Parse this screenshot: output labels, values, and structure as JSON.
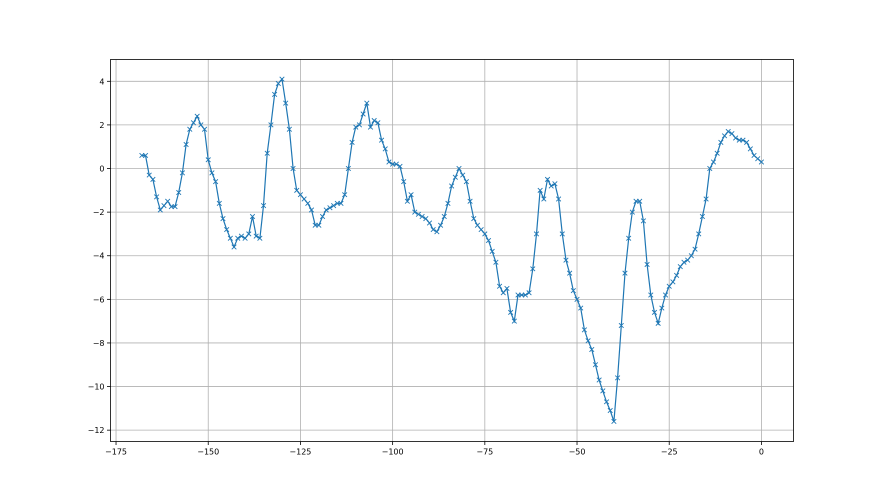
{
  "chart_data": {
    "type": "line",
    "marker": "x",
    "color": "#1f77b4",
    "grid": true,
    "xlim": [
      -176.5,
      8.7
    ],
    "ylim": [
      -12.52,
      5.0
    ],
    "xticks": [
      -175,
      -150,
      -125,
      -100,
      -75,
      -50,
      -25,
      0
    ],
    "yticks": [
      4,
      2,
      0,
      -2,
      -4,
      -6,
      -8,
      -10,
      -12
    ],
    "xtick_labels": [
      "−175",
      "−150",
      "−125",
      "−100",
      "−75",
      "−50",
      "−25",
      "0"
    ],
    "ytick_labels": [
      "4",
      "2",
      "0",
      "−2",
      "−4",
      "−6",
      "−8",
      "−10",
      "−12"
    ],
    "series": [
      {
        "x": [
          -168,
          -167,
          -166,
          -165,
          -164,
          -163,
          -162,
          -161,
          -160,
          -159,
          -158,
          -157,
          -156,
          -155,
          -154,
          -153,
          -152,
          -151,
          -150,
          -149,
          -148,
          -147,
          -146,
          -145,
          -144,
          -143,
          -142,
          -141,
          -140,
          -139,
          -138,
          -137,
          -136,
          -135,
          -134,
          -133,
          -132,
          -131,
          -130,
          -129,
          -128,
          -127,
          -126,
          -125,
          -124,
          -123,
          -122,
          -121,
          -120,
          -119,
          -118,
          -117,
          -116,
          -115,
          -114,
          -113,
          -112,
          -111,
          -110,
          -109,
          -108,
          -107,
          -106,
          -105,
          -104,
          -103,
          -102,
          -101,
          -100,
          -99,
          -98,
          -97,
          -96,
          -95,
          -94,
          -93,
          -92,
          -91,
          -90,
          -89,
          -88,
          -87,
          -86,
          -85,
          -84,
          -83,
          -82,
          -81,
          -80,
          -79,
          -78,
          -77,
          -76,
          -75,
          -74,
          -73,
          -72,
          -71,
          -70,
          -69,
          -68,
          -67,
          -66,
          -65,
          -64,
          -63,
          -62,
          -61,
          -60,
          -59,
          -58,
          -57,
          -56,
          -55,
          -54,
          -53,
          -52,
          -51,
          -50,
          -49,
          -48,
          -47,
          -46,
          -45,
          -44,
          -43,
          -42,
          -41,
          -40,
          -39,
          -38,
          -37,
          -36,
          -35,
          -34,
          -33,
          -32,
          -31,
          -30,
          -29,
          -28,
          -27,
          -26,
          -25,
          -24,
          -23,
          -22,
          -21,
          -20,
          -19,
          -18,
          -17,
          -16,
          -15,
          -14,
          -13,
          -12,
          -11,
          -10,
          -9,
          -8,
          -7,
          -6,
          -5,
          -4,
          -3,
          -2,
          -1,
          0
        ],
        "y": [
          0.6,
          0.6,
          -0.3,
          -0.5,
          -1.3,
          -1.9,
          -1.7,
          -1.5,
          -1.75,
          -1.75,
          -1.1,
          -0.2,
          1.1,
          1.8,
          2.1,
          2.4,
          2.0,
          1.8,
          0.4,
          -0.2,
          -0.6,
          -1.6,
          -2.3,
          -2.8,
          -3.2,
          -3.6,
          -3.2,
          -3.1,
          -3.2,
          -3.0,
          -2.2,
          -3.1,
          -3.2,
          -1.7,
          0.7,
          2.0,
          3.4,
          3.9,
          4.1,
          3.0,
          1.8,
          0.0,
          -1.0,
          -1.2,
          -1.4,
          -1.6,
          -1.9,
          -2.6,
          -2.6,
          -2.2,
          -1.9,
          -1.8,
          -1.7,
          -1.6,
          -1.6,
          -1.2,
          0.0,
          1.2,
          1.9,
          2.0,
          2.5,
          3.0,
          1.9,
          2.2,
          2.1,
          1.3,
          0.9,
          0.3,
          0.2,
          0.2,
          0.1,
          -0.6,
          -1.5,
          -1.2,
          -2.0,
          -2.1,
          -2.2,
          -2.3,
          -2.5,
          -2.8,
          -2.9,
          -2.6,
          -2.2,
          -1.6,
          -0.8,
          -0.4,
          0.0,
          -0.3,
          -0.6,
          -1.5,
          -2.3,
          -2.6,
          -2.8,
          -3.0,
          -3.3,
          -3.8,
          -4.3,
          -5.4,
          -5.7,
          -5.5,
          -6.6,
          -7.0,
          -5.8,
          -5.8,
          -5.8,
          -5.7,
          -4.6,
          -3.0,
          -1.0,
          -1.4,
          -0.5,
          -0.8,
          -0.7,
          -1.4,
          -3.0,
          -4.2,
          -4.8,
          -5.6,
          -6.0,
          -6.4,
          -7.4,
          -7.9,
          -8.3,
          -9.0,
          -9.7,
          -10.2,
          -10.7,
          -11.1,
          -11.6,
          -9.6,
          -7.2,
          -4.8,
          -3.2,
          -2.0,
          -1.5,
          -1.5,
          -2.4,
          -4.4,
          -5.8,
          -6.6,
          -7.1,
          -6.4,
          -5.8,
          -5.4,
          -5.2,
          -4.9,
          -4.5,
          -4.3,
          -4.2,
          -4.0,
          -3.7,
          -3.0,
          -2.2,
          -1.4,
          0.0,
          0.3,
          0.7,
          1.2,
          1.5,
          1.7,
          1.6,
          1.4,
          1.3,
          1.3,
          1.2,
          0.9,
          0.6,
          0.45,
          0.3
        ]
      }
    ]
  }
}
